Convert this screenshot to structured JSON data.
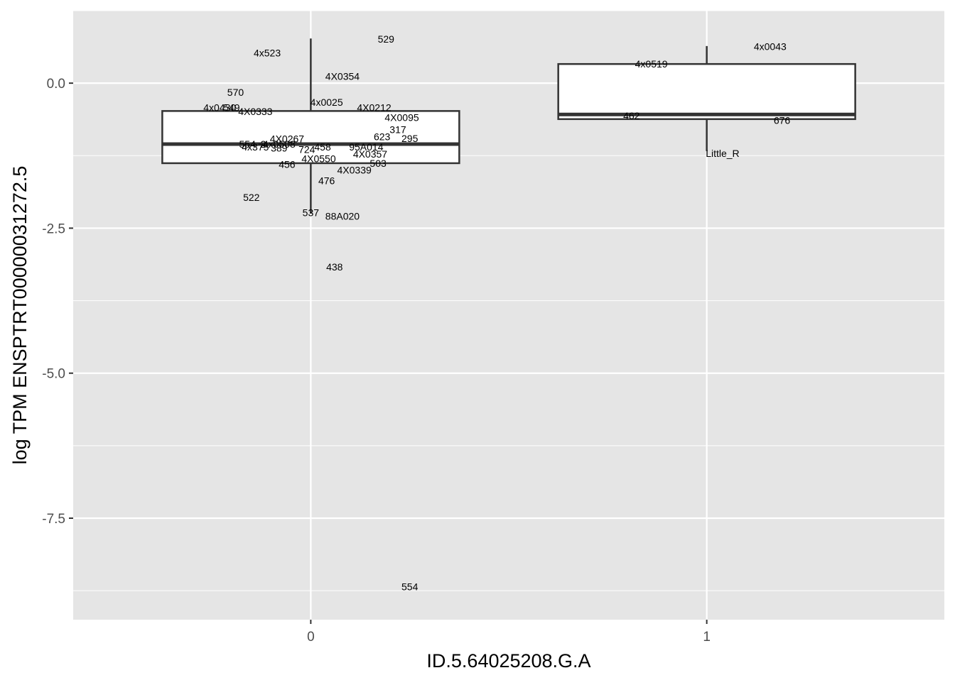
{
  "chart_data": {
    "type": "boxplot",
    "title": "",
    "xlabel": "ID.5.64025208.G.A",
    "ylabel": "log TPM ENSPTRT00000031272.5",
    "categories": [
      "0",
      "1"
    ],
    "x_range": [
      -0.6,
      1.6
    ],
    "ylim": [
      -9.25,
      1.25
    ],
    "y_ticks": [
      0.0,
      -2.5,
      -5.0,
      -7.5
    ],
    "y_tick_labels": [
      "0.0",
      "-2.5",
      "-5.0",
      "-7.5"
    ],
    "grid": true,
    "background": "#e5e5e5",
    "box_fill": "#ffffff",
    "box_stroke": "#333333",
    "boxes": [
      {
        "category": "0",
        "whisker_low": -2.25,
        "q1": -1.38,
        "median": -1.05,
        "q3": -0.48,
        "whisker_high": 0.77
      },
      {
        "category": "1",
        "whisker_low": -1.17,
        "q1": -0.62,
        "median": -0.54,
        "q3": 0.33,
        "whisker_high": 0.64
      }
    ],
    "points": [
      {
        "group": "0",
        "x": -0.11,
        "y": 0.52,
        "label": "4x523"
      },
      {
        "group": "0",
        "x": 0.19,
        "y": 0.76,
        "label": "529"
      },
      {
        "group": "0",
        "x": 0.08,
        "y": 0.12,
        "label": "4X0354"
      },
      {
        "group": "0",
        "x": -0.19,
        "y": -0.16,
        "label": "570"
      },
      {
        "group": "0",
        "x": -0.23,
        "y": -0.42,
        "label": "4x0430"
      },
      {
        "group": "0",
        "x": -0.2,
        "y": -0.42,
        "label": "549"
      },
      {
        "group": "0",
        "x": -0.14,
        "y": -0.49,
        "label": "4X0333"
      },
      {
        "group": "0",
        "x": 0.04,
        "y": -0.33,
        "label": "4x0025"
      },
      {
        "group": "0",
        "x": 0.16,
        "y": -0.42,
        "label": "4X0212"
      },
      {
        "group": "0",
        "x": 0.23,
        "y": -0.59,
        "label": "4X0095"
      },
      {
        "group": "0",
        "x": 0.22,
        "y": -0.8,
        "label": "317"
      },
      {
        "group": "0",
        "x": 0.18,
        "y": -0.92,
        "label": "623"
      },
      {
        "group": "0",
        "x": 0.25,
        "y": -0.95,
        "label": "295"
      },
      {
        "group": "0",
        "x": -0.06,
        "y": -0.96,
        "label": "4X0267"
      },
      {
        "group": "0",
        "x": -0.16,
        "y": -1.05,
        "label": "554"
      },
      {
        "group": "0",
        "x": -0.12,
        "y": -1.05,
        "label": "2"
      },
      {
        "group": "0",
        "x": -0.08,
        "y": -1.05,
        "label": "4x0508"
      },
      {
        "group": "0",
        "x": -0.14,
        "y": -1.1,
        "label": "4x375"
      },
      {
        "group": "0",
        "x": -0.08,
        "y": -1.12,
        "label": "389"
      },
      {
        "group": "0",
        "x": 0.03,
        "y": -1.1,
        "label": "458"
      },
      {
        "group": "0",
        "x": -0.01,
        "y": -1.14,
        "label": "724"
      },
      {
        "group": "0",
        "x": 0.14,
        "y": -1.1,
        "label": "95A014"
      },
      {
        "group": "0",
        "x": 0.15,
        "y": -1.22,
        "label": "4X0357"
      },
      {
        "group": "0",
        "x": 0.02,
        "y": -1.3,
        "label": "4X0550"
      },
      {
        "group": "0",
        "x": 0.17,
        "y": -1.38,
        "label": "503"
      },
      {
        "group": "0",
        "x": -0.06,
        "y": -1.4,
        "label": "456"
      },
      {
        "group": "0",
        "x": 0.11,
        "y": -1.5,
        "label": "4X0339"
      },
      {
        "group": "0",
        "x": 0.04,
        "y": -1.68,
        "label": "476"
      },
      {
        "group": "0",
        "x": -0.15,
        "y": -1.97,
        "label": "522"
      },
      {
        "group": "0",
        "x": 0.0,
        "y": -2.23,
        "label": "537"
      },
      {
        "group": "0",
        "x": 0.08,
        "y": -2.29,
        "label": "88A020"
      },
      {
        "group": "0",
        "x": 0.06,
        "y": -3.17,
        "label": "438"
      },
      {
        "group": "0",
        "x": 0.25,
        "y": -8.68,
        "label": "554"
      },
      {
        "group": "1",
        "x": 1.16,
        "y": 0.63,
        "label": "4x0043"
      },
      {
        "group": "1",
        "x": 0.86,
        "y": 0.33,
        "label": "4x0519"
      },
      {
        "group": "1",
        "x": 0.81,
        "y": -0.56,
        "label": "462"
      },
      {
        "group": "1",
        "x": 1.19,
        "y": -0.64,
        "label": "676"
      },
      {
        "group": "1",
        "x": 1.04,
        "y": -1.21,
        "label": "Little_R"
      }
    ]
  }
}
